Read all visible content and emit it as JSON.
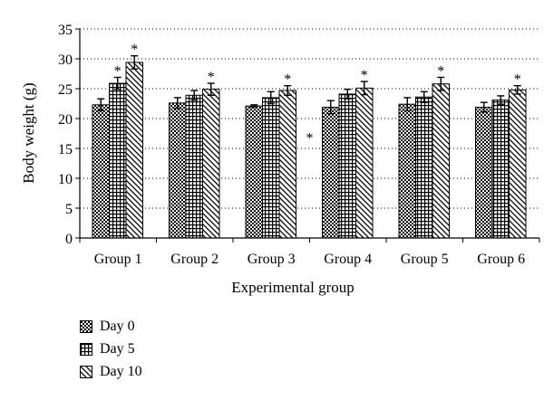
{
  "chart_data": {
    "type": "bar",
    "categories": [
      "Group 1",
      "Group 2",
      "Group 3",
      "Group 4",
      "Group 5",
      "Group 6"
    ],
    "series": [
      {
        "name": "Day 0",
        "values": [
          22.3,
          22.6,
          22.1,
          21.9,
          22.4,
          21.9
        ],
        "errors": [
          1.0,
          0.9,
          0.2,
          1.1,
          1.1,
          0.8
        ],
        "pattern": "checker"
      },
      {
        "name": "Day 5",
        "values": [
          25.9,
          23.9,
          23.5,
          24.1,
          23.6,
          23.1
        ],
        "errors": [
          1.0,
          0.8,
          1.0,
          0.8,
          0.9,
          0.7
        ],
        "pattern": "grid"
      },
      {
        "name": "Day 10",
        "values": [
          29.4,
          24.9,
          24.7,
          25.1,
          25.8,
          24.8
        ],
        "errors": [
          1.1,
          1.0,
          0.8,
          1.1,
          1.1,
          0.7
        ],
        "pattern": "diagonal"
      }
    ],
    "significance": [
      [
        false,
        true,
        true
      ],
      [
        false,
        false,
        true
      ],
      [
        false,
        false,
        true
      ],
      [
        false,
        false,
        true
      ],
      [
        false,
        false,
        true
      ],
      [
        false,
        false,
        true
      ]
    ],
    "significance_marker": "*",
    "title": "",
    "xlabel": "Experimental group",
    "ylabel": "Body weight (g)",
    "ylim": [
      0,
      35
    ],
    "yticks": [
      0,
      5,
      10,
      15,
      20,
      25,
      30,
      35
    ],
    "grid": "horizontal-dotted",
    "legend": "bottom-left",
    "stray_annotation": {
      "text": "*",
      "x_between": [
        "Group 3",
        "Group 4"
      ],
      "y": 17.5
    }
  }
}
